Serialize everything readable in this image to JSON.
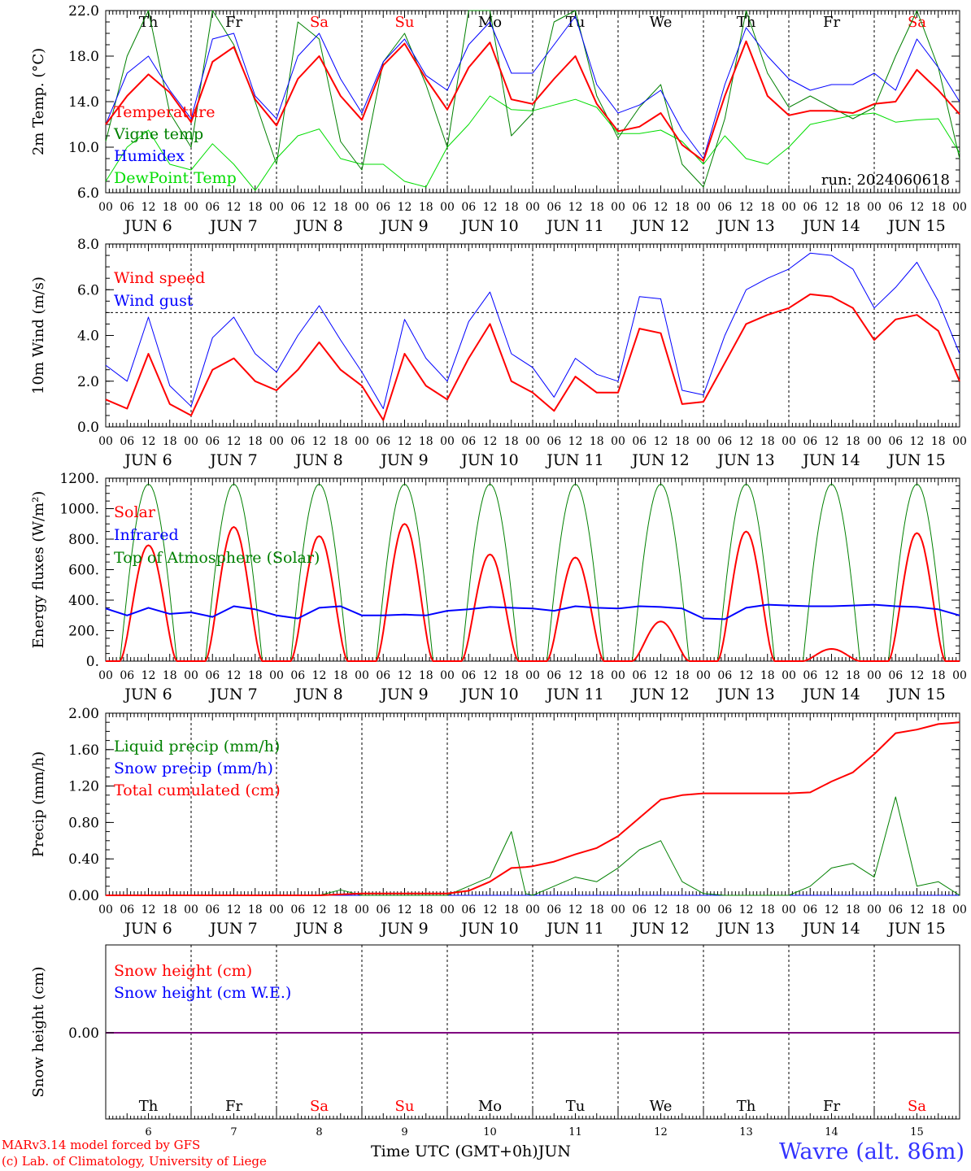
{
  "chart_data": [
    {
      "type": "line",
      "ylabel": "2m Temp. (°C)",
      "ylim": [
        6,
        22
      ],
      "yticks": [
        "6.0",
        "10.0",
        "14.0",
        "18.0",
        "22.0"
      ],
      "annotation": "run: 2024060618",
      "day_names": [
        "Th",
        "Fr",
        "Sa",
        "Su",
        "Mo",
        "Tu",
        "We",
        "Th",
        "Fr",
        "Sa"
      ],
      "x_hours": [
        0,
        6,
        12,
        18,
        24,
        30,
        36,
        42,
        48,
        54,
        60,
        66,
        72,
        78,
        84,
        90,
        96,
        102,
        108,
        114,
        120,
        126,
        132,
        138,
        144,
        150,
        156,
        162,
        168,
        174,
        180,
        186,
        192,
        198,
        204,
        210,
        216,
        222,
        228,
        234,
        240
      ],
      "series": [
        {
          "name": "Temperature",
          "color": "#ff0000",
          "width": 2,
          "values": [
            12,
            14.5,
            16.4,
            14.8,
            12.2,
            17.5,
            18.8,
            14.2,
            11.9,
            16,
            18,
            14.5,
            12.4,
            17.2,
            19.1,
            16,
            13.3,
            17,
            19.2,
            14.2,
            13.8,
            16,
            18,
            13.8,
            11.4,
            11.8,
            13,
            10.2,
            8.8,
            14.5,
            19.3,
            14.5,
            12.8,
            13.2,
            13.2,
            13,
            13.8,
            14,
            16.8,
            15,
            12.9
          ]
        },
        {
          "name": "Vigne temp",
          "color": "#008000",
          "width": 1,
          "values": [
            10.5,
            18,
            22,
            13,
            10,
            22,
            19,
            14,
            8.5,
            21,
            19.5,
            10.5,
            8,
            17.5,
            20,
            15.5,
            10,
            22,
            22,
            11,
            13,
            21,
            22,
            14.5,
            10.8,
            13.5,
            15.5,
            8.5,
            6.5,
            12.5,
            22,
            16.5,
            13.5,
            14.5,
            13.5,
            12.5,
            13.5,
            18,
            22,
            17,
            9
          ]
        },
        {
          "name": "Humidex",
          "color": "#0000ff",
          "width": 1,
          "values": [
            12,
            16.5,
            18,
            15,
            12.5,
            19.5,
            20,
            14.5,
            12.5,
            18,
            20,
            16,
            13,
            17.5,
            19.5,
            16.3,
            15,
            19,
            21,
            16.5,
            16.5,
            19,
            21.5,
            15.5,
            13,
            13.7,
            15,
            11.5,
            9,
            15.5,
            20.5,
            18,
            16,
            15,
            15.5,
            15.5,
            16.5,
            15,
            19.5,
            17,
            14
          ]
        },
        {
          "name": "DewPoint Temp",
          "color": "#00dd00",
          "width": 1,
          "values": [
            7,
            10,
            11.5,
            8.5,
            8,
            10.3,
            8.5,
            6.2,
            9,
            11,
            11.6,
            9,
            8.5,
            8.5,
            7,
            6.5,
            10,
            12,
            14.5,
            13.3,
            13.2,
            13.7,
            14.2,
            13.5,
            11.2,
            11.2,
            11.5,
            10.5,
            8.5,
            11,
            9,
            8.5,
            10,
            12,
            12.4,
            12.8,
            13,
            12.2,
            12.4,
            12.5,
            9.5
          ]
        }
      ]
    },
    {
      "type": "line",
      "ylabel": "10m Wind (m/s)",
      "ylim": [
        0,
        8
      ],
      "yticks": [
        "0.0",
        "2.0",
        "4.0",
        "6.0",
        "8.0"
      ],
      "reference_line": 5,
      "x_hours": [
        0,
        6,
        12,
        18,
        24,
        30,
        36,
        42,
        48,
        54,
        60,
        66,
        72,
        78,
        84,
        90,
        96,
        102,
        108,
        114,
        120,
        126,
        132,
        138,
        144,
        150,
        156,
        162,
        168,
        174,
        180,
        186,
        192,
        198,
        204,
        210,
        216,
        222,
        228,
        234,
        240
      ],
      "series": [
        {
          "name": "Wind speed",
          "color": "#ff0000",
          "width": 2,
          "values": [
            1.2,
            0.8,
            3.2,
            1,
            0.5,
            2.5,
            3,
            2,
            1.6,
            2.5,
            3.7,
            2.5,
            1.8,
            0.3,
            3.2,
            1.8,
            1.2,
            3,
            4.5,
            2,
            1.5,
            0.7,
            2.2,
            1.5,
            1.5,
            4.3,
            4.1,
            1,
            1.1,
            2.8,
            4.5,
            4.9,
            5.2,
            5.8,
            5.7,
            5.2,
            3.8,
            4.7,
            4.9,
            4.2,
            2
          ]
        },
        {
          "name": "Wind gust",
          "color": "#0000ff",
          "width": 1,
          "values": [
            2.7,
            2,
            4.8,
            1.8,
            0.9,
            3.9,
            4.8,
            3.2,
            2.4,
            4,
            5.3,
            3.8,
            2.4,
            0.8,
            4.7,
            3,
            2,
            4.6,
            5.9,
            3.2,
            2.6,
            1.3,
            3,
            2.3,
            2,
            5.7,
            5.6,
            1.6,
            1.4,
            4,
            6,
            6.5,
            6.9,
            7.6,
            7.5,
            6.9,
            5.2,
            6.1,
            7.2,
            5.5,
            3.2
          ]
        }
      ]
    },
    {
      "type": "line",
      "ylabel": "Energy fluxes (W/m²)",
      "ylim": [
        0,
        1200
      ],
      "yticks": [
        "0.",
        "200.",
        "400.",
        "600.",
        "800.",
        "1000.",
        "1200."
      ],
      "day_peaks_solar": [
        760,
        880,
        820,
        900,
        700,
        680,
        260,
        850,
        80,
        840
      ],
      "solar_day_start_hour": 4,
      "solar_day_end_hour": 20,
      "toa_peak": 1160,
      "infrared_hours": [
        0,
        6,
        12,
        18,
        24,
        30,
        36,
        42,
        48,
        54,
        60,
        66,
        72,
        78,
        84,
        90,
        96,
        102,
        108,
        114,
        120,
        126,
        132,
        138,
        144,
        150,
        156,
        162,
        168,
        174,
        180,
        186,
        192,
        198,
        204,
        210,
        216,
        222,
        228,
        234,
        240
      ],
      "series": [
        {
          "name": "Solar",
          "color": "#ff0000",
          "width": 2
        },
        {
          "name": "Infrared",
          "color": "#0000ff",
          "width": 2,
          "values": [
            345,
            300,
            350,
            310,
            320,
            290,
            360,
            340,
            300,
            280,
            350,
            360,
            300,
            300,
            305,
            300,
            330,
            340,
            355,
            350,
            345,
            330,
            360,
            350,
            345,
            360,
            355,
            345,
            280,
            275,
            350,
            370,
            365,
            360,
            360,
            365,
            370,
            360,
            355,
            340,
            300
          ]
        },
        {
          "name": "Top of Atmosphere (Solar)",
          "color": "#008000",
          "width": 1
        }
      ]
    },
    {
      "type": "line",
      "ylabel": "Precip (mm/h)",
      "ylim": [
        0,
        2
      ],
      "yticks": [
        "0.00",
        "0.40",
        "0.80",
        "1.20",
        "1.60",
        "2.00"
      ],
      "x_hours": [
        0,
        12,
        24,
        36,
        48,
        60,
        66,
        72,
        84,
        96,
        102,
        108,
        114,
        118,
        120,
        126,
        132,
        138,
        144,
        150,
        156,
        162,
        168,
        174,
        180,
        186,
        192,
        198,
        204,
        210,
        216,
        222,
        228,
        234,
        240
      ],
      "series": [
        {
          "name": "Liquid precip (mm/h)",
          "color": "#008000",
          "width": 1,
          "values": [
            0,
            0,
            0,
            0,
            0,
            0,
            0.06,
            0,
            0,
            0,
            0.1,
            0.2,
            0.7,
            0.02,
            0,
            0.1,
            0.2,
            0.15,
            0.3,
            0.5,
            0.6,
            0.15,
            0.02,
            0,
            0,
            0,
            0,
            0.1,
            0.3,
            0.35,
            0.2,
            1.08,
            0.1,
            0.15,
            0
          ]
        },
        {
          "name": "Snow precip (mm/h)",
          "color": "#0000ff",
          "width": 1,
          "values": [
            0,
            0,
            0,
            0,
            0,
            0,
            0,
            0,
            0,
            0,
            0,
            0,
            0,
            0,
            0,
            0,
            0,
            0,
            0,
            0,
            0,
            0,
            0,
            0,
            0,
            0,
            0,
            0,
            0,
            0,
            0,
            0,
            0,
            0,
            0
          ]
        },
        {
          "name": "Total cumulated (cm)",
          "color": "#ff0000",
          "width": 2,
          "values": [
            0,
            0,
            0,
            0,
            0,
            0,
            0.01,
            0.02,
            0.02,
            0.02,
            0.05,
            0.15,
            0.3,
            0.31,
            0.32,
            0.37,
            0.45,
            0.52,
            0.65,
            0.85,
            1.05,
            1.1,
            1.12,
            1.12,
            1.12,
            1.12,
            1.12,
            1.13,
            1.25,
            1.35,
            1.55,
            1.78,
            1.82,
            1.88,
            1.9
          ]
        }
      ]
    },
    {
      "type": "line",
      "ylabel": "Snow height (cm)",
      "yticks": [
        "0.00"
      ],
      "series": [
        {
          "name": "Snow height (cm)",
          "color": "#ff0000",
          "width": 1,
          "values": [
            0,
            0
          ]
        },
        {
          "name": "Snow height (cm W.E.)",
          "color": "#0000ff",
          "width": 1,
          "values": [
            0,
            0
          ]
        }
      ],
      "day_names": [
        "Th",
        "Fr",
        "Sa",
        "Su",
        "Mo",
        "Tu",
        "We",
        "Th",
        "Fr",
        "Sa"
      ],
      "day_numbers": [
        "6",
        "7",
        "8",
        "9",
        "10",
        "11",
        "12",
        "13",
        "14",
        "15"
      ],
      "xlabel": "Time UTC (GMT+0h)",
      "month": "JUN"
    }
  ],
  "x_axis": {
    "hour_ticks": [
      "00",
      "06",
      "12",
      "18"
    ],
    "end_tick": "00",
    "date_labels": [
      "JUN  6",
      "JUN  7",
      "JUN  8",
      "JUN  9",
      "JUN 10",
      "JUN 11",
      "JUN 12",
      "JUN 13",
      "JUN 14",
      "JUN 15"
    ]
  },
  "weekend_color": "#ff0000",
  "weekend_days": [
    "Sa",
    "Su"
  ],
  "footer": {
    "model": "MARv3.14 model forced by GFS",
    "credit": "(c) Lab. of Climatology, University of Liege",
    "xlabel": "Time UTC (GMT+0h)",
    "month": "JUN",
    "station": "Wavre (alt. 86m)"
  }
}
